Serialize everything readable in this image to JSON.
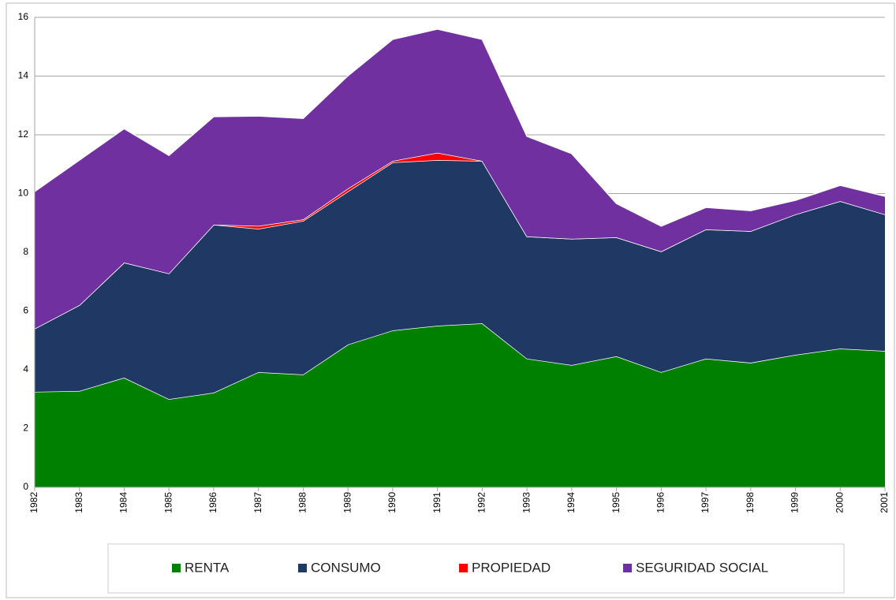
{
  "chart_data": {
    "type": "stacked_area",
    "categories": [
      "1982",
      "1983",
      "1984",
      "1985",
      "1986",
      "1987",
      "1988",
      "1989",
      "1990",
      "1991",
      "1992",
      "1993",
      "1994",
      "1995",
      "1996",
      "1997",
      "1998",
      "1999",
      "2000",
      "2001"
    ],
    "series": [
      {
        "name": "RENTA",
        "color": "#008000",
        "values": [
          3.25,
          3.28,
          3.73,
          3.0,
          3.22,
          3.92,
          3.84,
          4.86,
          5.34,
          5.5,
          5.58,
          4.38,
          4.16,
          4.46,
          3.92,
          4.38,
          4.24,
          4.51,
          4.72,
          4.64
        ]
      },
      {
        "name": "CONSUMO",
        "color": "#203864",
        "values": [
          2.15,
          2.92,
          3.92,
          4.28,
          5.72,
          4.88,
          5.23,
          5.21,
          5.72,
          5.64,
          5.53,
          4.16,
          4.3,
          4.05,
          4.11,
          4.4,
          4.48,
          4.78,
          5.02,
          4.65
        ]
      },
      {
        "name": "PROPIEDAD",
        "color": "#ff0000",
        "values": [
          0,
          0,
          0,
          0,
          0,
          0.1,
          0.05,
          0.1,
          0.05,
          0.25,
          0,
          0,
          0,
          0,
          0,
          0,
          0,
          0,
          0,
          0
        ]
      },
      {
        "name": "SEGURIDAD SOCIAL",
        "color": "#7030a0",
        "values": [
          4.67,
          4.94,
          4.56,
          4.02,
          3.68,
          3.74,
          3.44,
          3.84,
          4.14,
          4.21,
          4.14,
          3.41,
          2.9,
          1.15,
          0.86,
          0.75,
          0.7,
          0.48,
          0.54,
          0.62
        ]
      }
    ],
    "ylim": [
      0,
      16
    ],
    "yticks": [
      0,
      2,
      4,
      6,
      8,
      10,
      12,
      14,
      16
    ],
    "grid": true,
    "legend": "bottom"
  }
}
